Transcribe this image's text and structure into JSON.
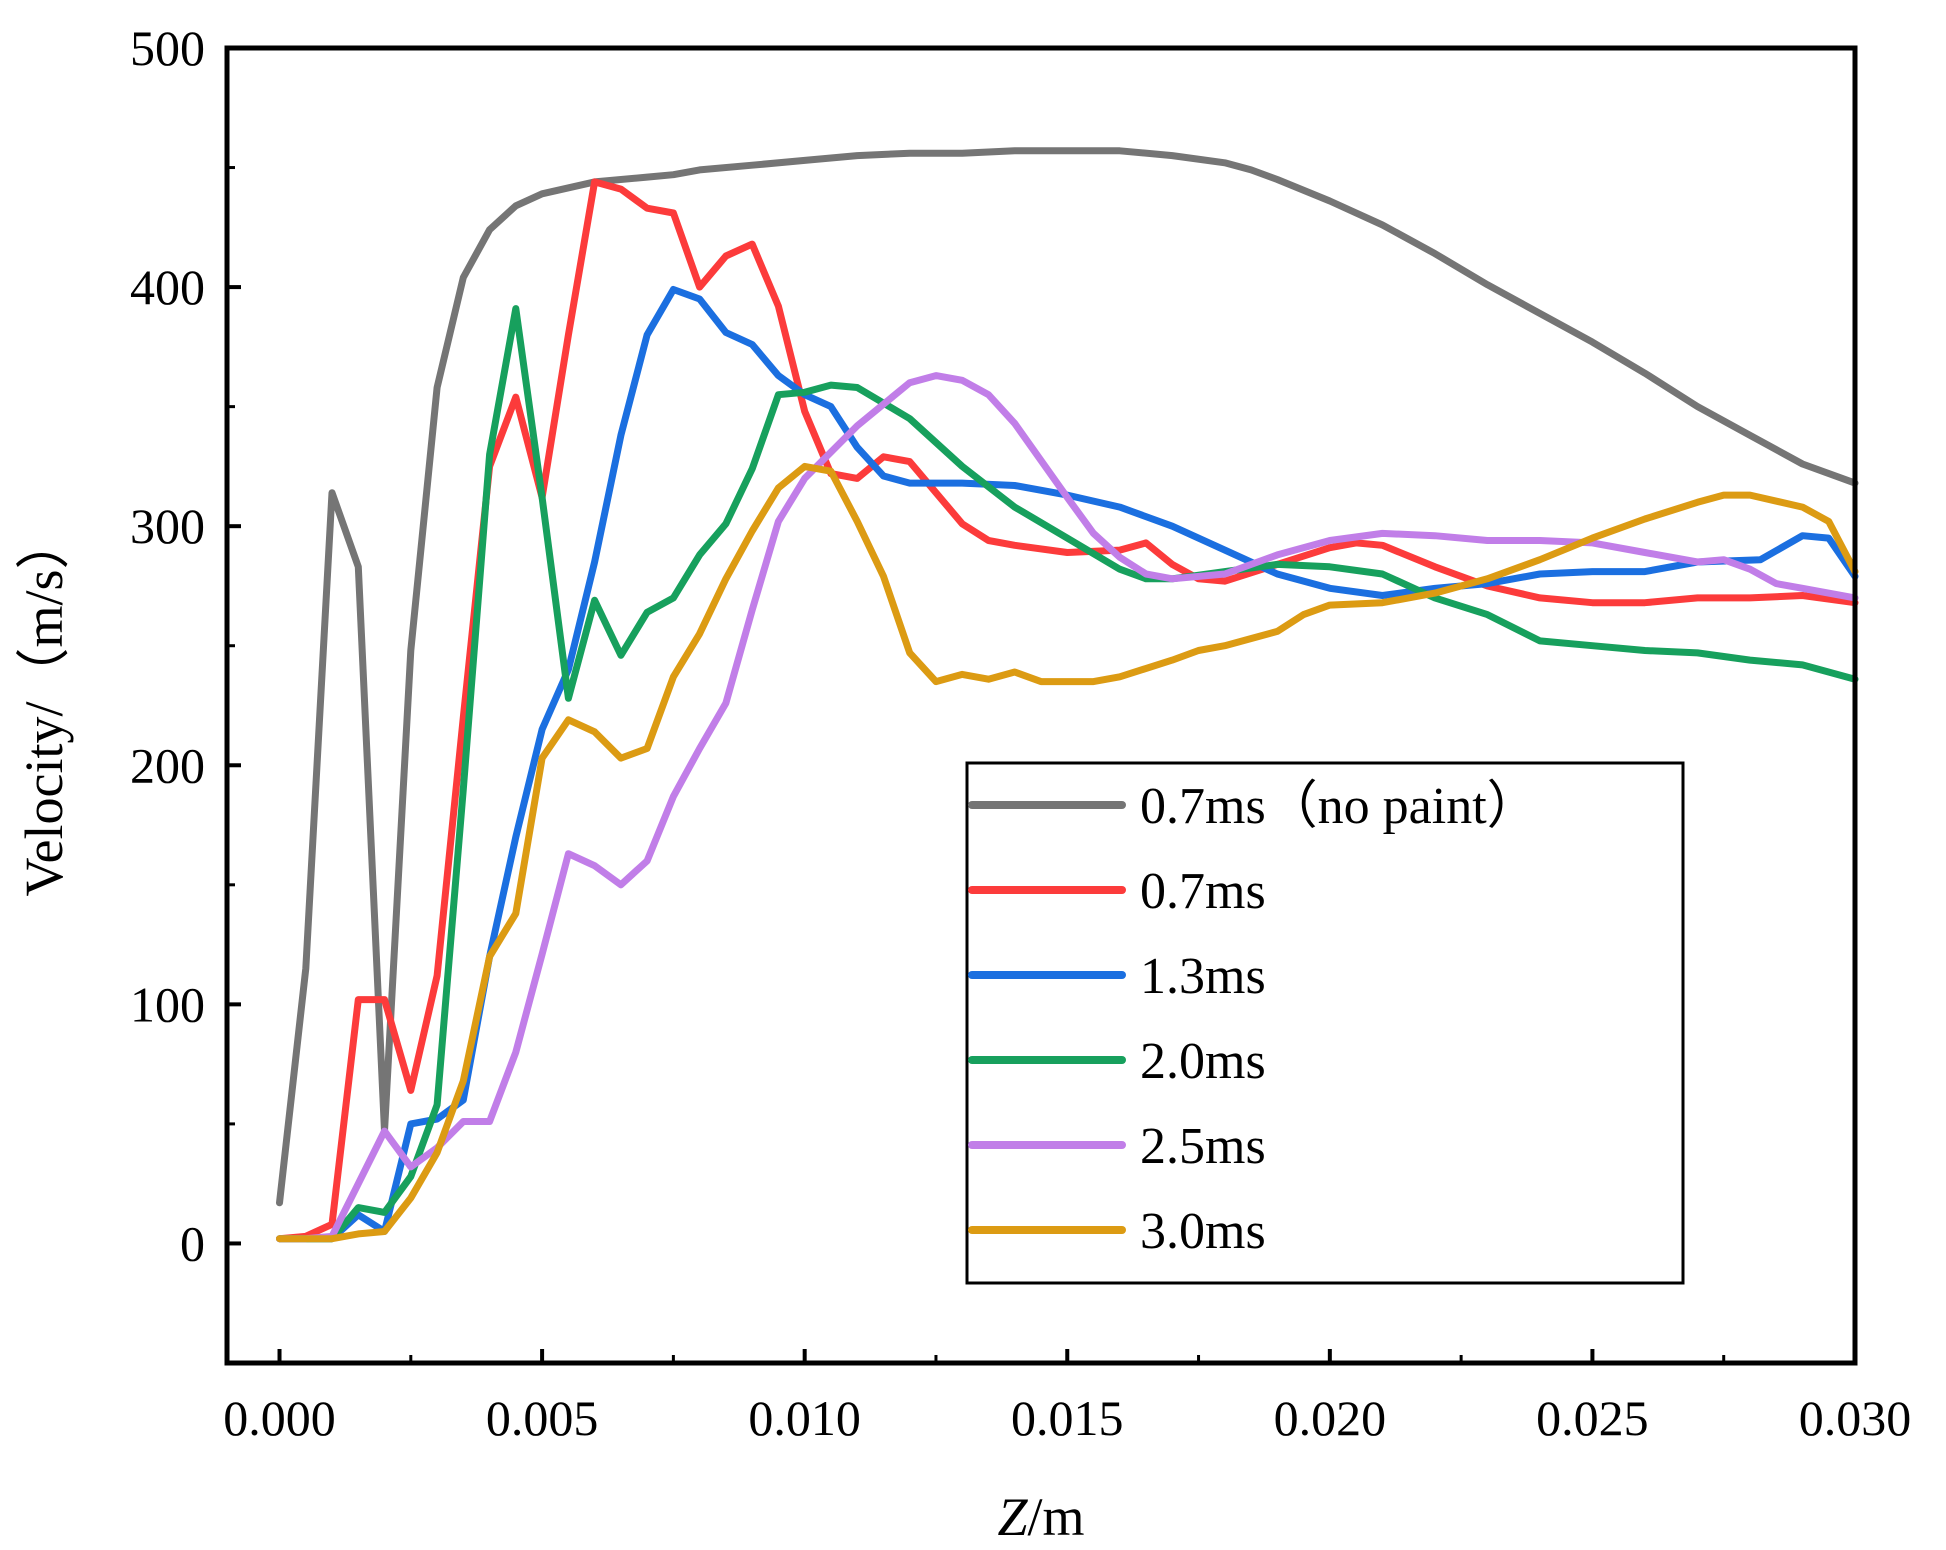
{
  "chart_data": {
    "type": "line",
    "title": "",
    "xlabel_italic": "Z",
    "xlabel_rest": "/m",
    "ylabel": "Velocity/（m/s）",
    "xlim": [
      -0.001,
      0.03
    ],
    "ylim": [
      -50,
      500
    ],
    "x_ticks": [
      0.0,
      0.005,
      0.01,
      0.015,
      0.02,
      0.025,
      0.03
    ],
    "x_tick_labels": [
      "0.000",
      "0.005",
      "0.010",
      "0.015",
      "0.020",
      "0.025",
      "0.030"
    ],
    "y_ticks": [
      0,
      100,
      200,
      300,
      400,
      500
    ],
    "y_tick_labels": [
      "0",
      "100",
      "200",
      "300",
      "400",
      "500"
    ],
    "grid": false,
    "legend_position": "center-right",
    "series": [
      {
        "name": "0.7ms（no paint）",
        "color": "#757575",
        "points": [
          [
            0.0,
            17
          ],
          [
            0.0005,
            115
          ],
          [
            0.001,
            314
          ],
          [
            0.0015,
            283
          ],
          [
            0.002,
            47
          ],
          [
            0.0025,
            248
          ],
          [
            0.003,
            358
          ],
          [
            0.0035,
            404
          ],
          [
            0.004,
            424
          ],
          [
            0.0045,
            434
          ],
          [
            0.005,
            439
          ],
          [
            0.006,
            444
          ],
          [
            0.007,
            446
          ],
          [
            0.0075,
            447
          ],
          [
            0.008,
            449
          ],
          [
            0.009,
            451
          ],
          [
            0.01,
            453
          ],
          [
            0.011,
            455
          ],
          [
            0.012,
            456
          ],
          [
            0.013,
            456
          ],
          [
            0.014,
            457
          ],
          [
            0.015,
            457
          ],
          [
            0.016,
            457
          ],
          [
            0.017,
            455
          ],
          [
            0.018,
            452
          ],
          [
            0.0185,
            449
          ],
          [
            0.019,
            445
          ],
          [
            0.02,
            436
          ],
          [
            0.021,
            426
          ],
          [
            0.022,
            414
          ],
          [
            0.023,
            401
          ],
          [
            0.024,
            389
          ],
          [
            0.025,
            377
          ],
          [
            0.026,
            364
          ],
          [
            0.027,
            350
          ],
          [
            0.028,
            338
          ],
          [
            0.029,
            326
          ],
          [
            0.03,
            318
          ]
        ]
      },
      {
        "name": "0.7ms",
        "color": "#fc3b3b",
        "points": [
          [
            0.0,
            2
          ],
          [
            0.0005,
            3
          ],
          [
            0.001,
            8
          ],
          [
            0.0015,
            102
          ],
          [
            0.002,
            102
          ],
          [
            0.0025,
            64
          ],
          [
            0.003,
            112
          ],
          [
            0.0035,
            220
          ],
          [
            0.004,
            325
          ],
          [
            0.0045,
            354
          ],
          [
            0.005,
            312
          ],
          [
            0.0055,
            380
          ],
          [
            0.006,
            444
          ],
          [
            0.0065,
            441
          ],
          [
            0.007,
            433
          ],
          [
            0.0075,
            431
          ],
          [
            0.008,
            400
          ],
          [
            0.0085,
            413
          ],
          [
            0.009,
            418
          ],
          [
            0.0095,
            392
          ],
          [
            0.01,
            348
          ],
          [
            0.0105,
            322
          ],
          [
            0.011,
            320
          ],
          [
            0.0115,
            329
          ],
          [
            0.012,
            327
          ],
          [
            0.0125,
            314
          ],
          [
            0.013,
            301
          ],
          [
            0.0135,
            294
          ],
          [
            0.014,
            292
          ],
          [
            0.015,
            289
          ],
          [
            0.016,
            290
          ],
          [
            0.0165,
            293
          ],
          [
            0.017,
            284
          ],
          [
            0.0175,
            278
          ],
          [
            0.018,
            277
          ],
          [
            0.019,
            284
          ],
          [
            0.02,
            291
          ],
          [
            0.0205,
            293
          ],
          [
            0.021,
            292
          ],
          [
            0.022,
            283
          ],
          [
            0.023,
            275
          ],
          [
            0.024,
            270
          ],
          [
            0.025,
            268
          ],
          [
            0.026,
            268
          ],
          [
            0.027,
            270
          ],
          [
            0.028,
            270
          ],
          [
            0.029,
            271
          ],
          [
            0.03,
            268
          ]
        ]
      },
      {
        "name": "1.3ms",
        "color": "#1b6fe0",
        "points": [
          [
            0.0,
            2
          ],
          [
            0.0005,
            2
          ],
          [
            0.001,
            2
          ],
          [
            0.0015,
            12
          ],
          [
            0.002,
            5
          ],
          [
            0.0025,
            50
          ],
          [
            0.003,
            52
          ],
          [
            0.0035,
            60
          ],
          [
            0.004,
            120
          ],
          [
            0.0045,
            170
          ],
          [
            0.005,
            215
          ],
          [
            0.0055,
            240
          ],
          [
            0.006,
            285
          ],
          [
            0.0065,
            338
          ],
          [
            0.007,
            380
          ],
          [
            0.0075,
            399
          ],
          [
            0.008,
            395
          ],
          [
            0.0085,
            381
          ],
          [
            0.009,
            376
          ],
          [
            0.0095,
            363
          ],
          [
            0.01,
            355
          ],
          [
            0.0105,
            350
          ],
          [
            0.011,
            333
          ],
          [
            0.0115,
            321
          ],
          [
            0.012,
            318
          ],
          [
            0.013,
            318
          ],
          [
            0.014,
            317
          ],
          [
            0.015,
            313
          ],
          [
            0.016,
            308
          ],
          [
            0.017,
            300
          ],
          [
            0.018,
            290
          ],
          [
            0.019,
            280
          ],
          [
            0.02,
            274
          ],
          [
            0.021,
            271
          ],
          [
            0.022,
            274
          ],
          [
            0.023,
            276
          ],
          [
            0.024,
            280
          ],
          [
            0.025,
            281
          ],
          [
            0.026,
            281
          ],
          [
            0.027,
            285
          ],
          [
            0.0282,
            286
          ],
          [
            0.029,
            296
          ],
          [
            0.0295,
            295
          ],
          [
            0.03,
            279
          ]
        ]
      },
      {
        "name": "2.0ms",
        "color": "#17a05d",
        "points": [
          [
            0.0,
            2
          ],
          [
            0.0005,
            2
          ],
          [
            0.001,
            2
          ],
          [
            0.0015,
            15
          ],
          [
            0.002,
            13
          ],
          [
            0.0025,
            28
          ],
          [
            0.003,
            58
          ],
          [
            0.0035,
            190
          ],
          [
            0.004,
            330
          ],
          [
            0.0045,
            391
          ],
          [
            0.005,
            312
          ],
          [
            0.0055,
            228
          ],
          [
            0.006,
            269
          ],
          [
            0.0065,
            246
          ],
          [
            0.007,
            264
          ],
          [
            0.0075,
            270
          ],
          [
            0.008,
            288
          ],
          [
            0.0085,
            301
          ],
          [
            0.009,
            324
          ],
          [
            0.0095,
            355
          ],
          [
            0.01,
            356
          ],
          [
            0.0105,
            359
          ],
          [
            0.011,
            358
          ],
          [
            0.012,
            345
          ],
          [
            0.013,
            325
          ],
          [
            0.014,
            308
          ],
          [
            0.015,
            295
          ],
          [
            0.016,
            282
          ],
          [
            0.0165,
            278
          ],
          [
            0.017,
            278
          ],
          [
            0.018,
            281
          ],
          [
            0.019,
            284
          ],
          [
            0.02,
            283
          ],
          [
            0.021,
            280
          ],
          [
            0.022,
            270
          ],
          [
            0.023,
            263
          ],
          [
            0.024,
            252
          ],
          [
            0.025,
            250
          ],
          [
            0.026,
            248
          ],
          [
            0.027,
            247
          ],
          [
            0.028,
            244
          ],
          [
            0.029,
            242
          ],
          [
            0.03,
            236
          ]
        ]
      },
      {
        "name": "2.5ms",
        "color": "#c17ee8",
        "points": [
          [
            0.0,
            2
          ],
          [
            0.0005,
            2
          ],
          [
            0.001,
            3
          ],
          [
            0.0015,
            25
          ],
          [
            0.002,
            47
          ],
          [
            0.0025,
            32
          ],
          [
            0.003,
            40
          ],
          [
            0.0035,
            51
          ],
          [
            0.004,
            51
          ],
          [
            0.0045,
            80
          ],
          [
            0.005,
            121
          ],
          [
            0.0055,
            163
          ],
          [
            0.006,
            158
          ],
          [
            0.0065,
            150
          ],
          [
            0.007,
            160
          ],
          [
            0.0075,
            187
          ],
          [
            0.008,
            207
          ],
          [
            0.0085,
            226
          ],
          [
            0.009,
            265
          ],
          [
            0.0095,
            302
          ],
          [
            0.01,
            320
          ],
          [
            0.011,
            342
          ],
          [
            0.012,
            360
          ],
          [
            0.0125,
            363
          ],
          [
            0.013,
            361
          ],
          [
            0.0135,
            355
          ],
          [
            0.014,
            343
          ],
          [
            0.015,
            312
          ],
          [
            0.0155,
            297
          ],
          [
            0.016,
            287
          ],
          [
            0.0165,
            280
          ],
          [
            0.017,
            278
          ],
          [
            0.018,
            280
          ],
          [
            0.019,
            288
          ],
          [
            0.02,
            294
          ],
          [
            0.021,
            297
          ],
          [
            0.022,
            296
          ],
          [
            0.023,
            294
          ],
          [
            0.024,
            294
          ],
          [
            0.025,
            293
          ],
          [
            0.026,
            289
          ],
          [
            0.027,
            285
          ],
          [
            0.0275,
            286
          ],
          [
            0.028,
            282
          ],
          [
            0.0285,
            276
          ],
          [
            0.029,
            274
          ],
          [
            0.03,
            270
          ]
        ]
      },
      {
        "name": "3.0ms",
        "color": "#dc9b13",
        "points": [
          [
            0.0,
            2
          ],
          [
            0.0005,
            2
          ],
          [
            0.001,
            2
          ],
          [
            0.0015,
            4
          ],
          [
            0.002,
            5
          ],
          [
            0.0025,
            19
          ],
          [
            0.003,
            38
          ],
          [
            0.0035,
            68
          ],
          [
            0.004,
            120
          ],
          [
            0.0045,
            138
          ],
          [
            0.005,
            203
          ],
          [
            0.0055,
            219
          ],
          [
            0.006,
            214
          ],
          [
            0.0065,
            203
          ],
          [
            0.007,
            207
          ],
          [
            0.0075,
            237
          ],
          [
            0.008,
            255
          ],
          [
            0.0085,
            278
          ],
          [
            0.009,
            298
          ],
          [
            0.0095,
            316
          ],
          [
            0.01,
            325
          ],
          [
            0.0105,
            323
          ],
          [
            0.011,
            302
          ],
          [
            0.0115,
            279
          ],
          [
            0.012,
            247
          ],
          [
            0.0125,
            235
          ],
          [
            0.013,
            238
          ],
          [
            0.0135,
            236
          ],
          [
            0.014,
            239
          ],
          [
            0.0145,
            235
          ],
          [
            0.015,
            235
          ],
          [
            0.0155,
            235
          ],
          [
            0.016,
            237
          ],
          [
            0.017,
            244
          ],
          [
            0.0175,
            248
          ],
          [
            0.018,
            250
          ],
          [
            0.019,
            256
          ],
          [
            0.0195,
            263
          ],
          [
            0.02,
            267
          ],
          [
            0.021,
            268
          ],
          [
            0.022,
            272
          ],
          [
            0.023,
            278
          ],
          [
            0.024,
            286
          ],
          [
            0.025,
            295
          ],
          [
            0.026,
            303
          ],
          [
            0.027,
            310
          ],
          [
            0.0275,
            313
          ],
          [
            0.028,
            313
          ],
          [
            0.029,
            308
          ],
          [
            0.0295,
            302
          ],
          [
            0.03,
            281
          ]
        ]
      }
    ]
  }
}
